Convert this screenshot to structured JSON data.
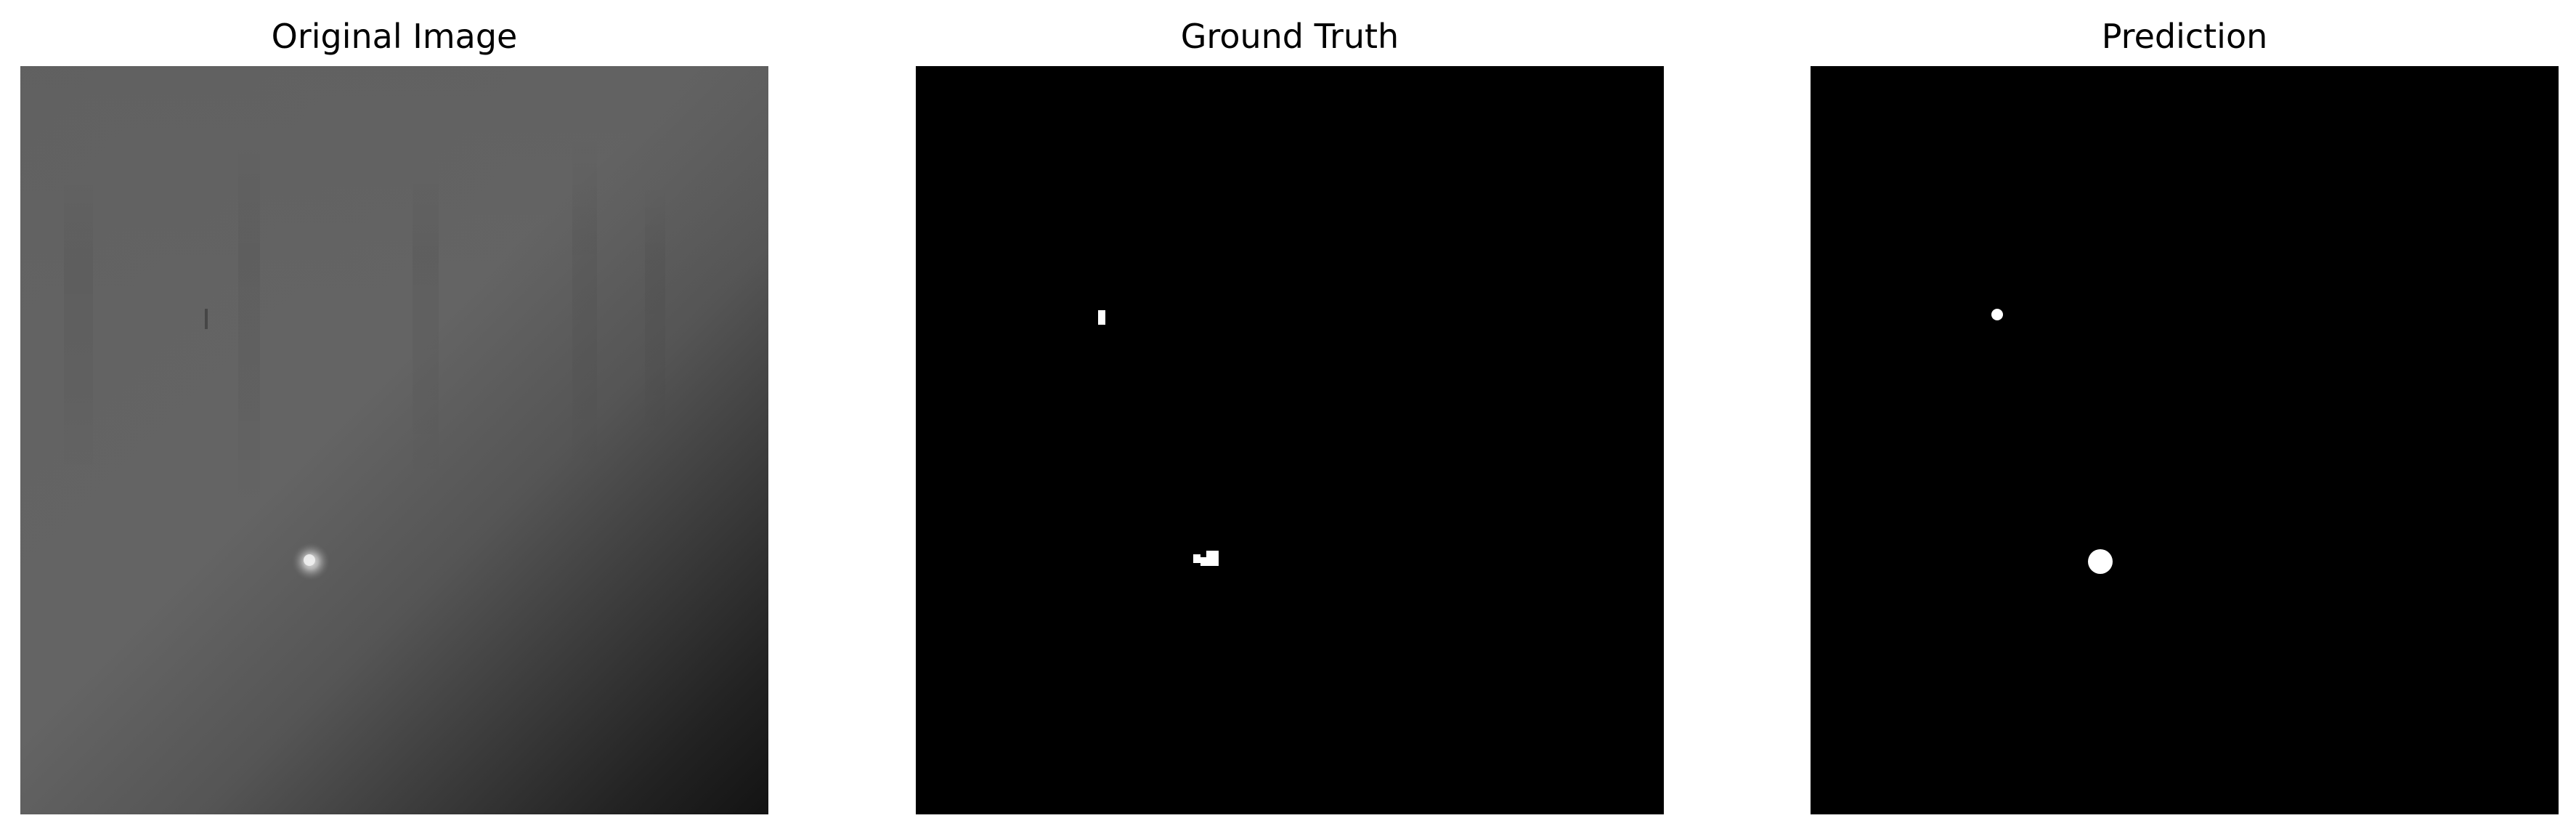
{
  "panels": [
    {
      "title": "Original Image"
    },
    {
      "title": "Ground Truth"
    },
    {
      "title": "Prediction"
    }
  ],
  "colors": {
    "background": "#ffffff",
    "mask_background": "#000000",
    "mask_foreground": "#ffffff",
    "original_light_gray": "#666666",
    "original_dark_corner": "#141414"
  }
}
